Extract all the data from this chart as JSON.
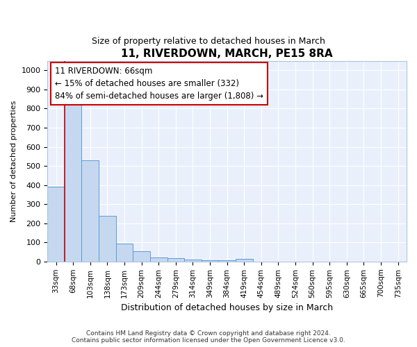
{
  "title": "11, RIVERDOWN, MARCH, PE15 8RA",
  "subtitle": "Size of property relative to detached houses in March",
  "xlabel": "Distribution of detached houses by size in March",
  "ylabel": "Number of detached properties",
  "bar_labels": [
    "33sqm",
    "68sqm",
    "103sqm",
    "138sqm",
    "173sqm",
    "209sqm",
    "244sqm",
    "279sqm",
    "314sqm",
    "349sqm",
    "384sqm",
    "419sqm",
    "454sqm",
    "489sqm",
    "524sqm",
    "560sqm",
    "595sqm",
    "630sqm",
    "665sqm",
    "700sqm",
    "735sqm"
  ],
  "bar_values": [
    390,
    830,
    530,
    240,
    95,
    53,
    22,
    18,
    12,
    8,
    5,
    14,
    0,
    0,
    0,
    0,
    0,
    0,
    0,
    0,
    0
  ],
  "bar_color": "#c5d8f0",
  "bar_edge_color": "#5b9bd5",
  "ylim": [
    0,
    1050
  ],
  "yticks": [
    0,
    100,
    200,
    300,
    400,
    500,
    600,
    700,
    800,
    900,
    1000
  ],
  "vline_x": 0.5,
  "vline_color": "#cc0000",
  "annotation_text": "11 RIVERDOWN: 66sqm\n← 15% of detached houses are smaller (332)\n84% of semi-detached houses are larger (1,808) →",
  "annotation_box_color": "#ffffff",
  "annotation_box_edge": "#cc0000",
  "footer_text": "Contains HM Land Registry data © Crown copyright and database right 2024.\nContains public sector information licensed under the Open Government Licence v3.0.",
  "background_color": "#eaf0fb",
  "grid_color": "#ffffff",
  "title_fontsize": 11,
  "subtitle_fontsize": 9,
  "xlabel_fontsize": 9,
  "ylabel_fontsize": 8
}
